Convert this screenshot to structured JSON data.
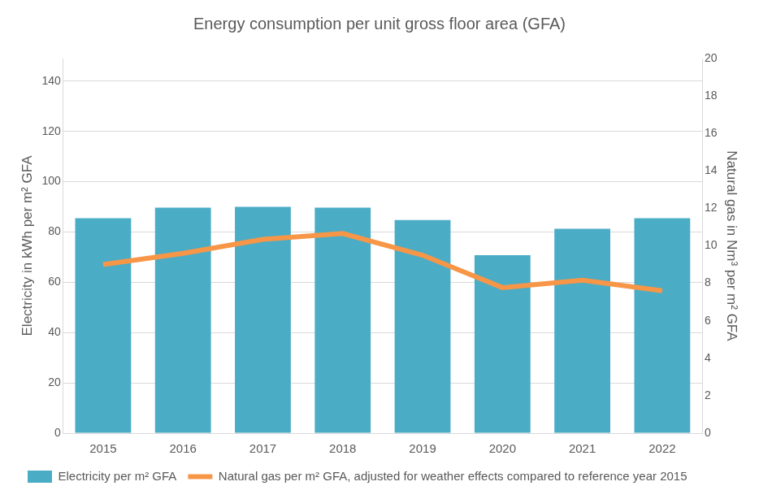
{
  "chart_data": {
    "type": "bar",
    "title": "Energy consumption per unit gross floor area (GFA)",
    "categories": [
      "2015",
      "2016",
      "2017",
      "2018",
      "2019",
      "2020",
      "2021",
      "2022"
    ],
    "series": [
      {
        "name": "Electricity per m² GFA",
        "type": "bar",
        "color": "#4bacc6",
        "values": [
          85.5,
          89.7,
          90.0,
          89.7,
          84.8,
          70.8,
          81.3,
          85.5
        ]
      },
      {
        "name": "Natural gas per m² GFA, adjusted for weather effects compared to reference year 2015",
        "type": "line",
        "color": "#f79646",
        "axis": "y2",
        "values": [
          9.0,
          9.6,
          10.35,
          10.66,
          9.5,
          7.77,
          8.17,
          7.6
        ]
      }
    ],
    "ylabel": "Electricity in kWh per m² GFA",
    "y2label": "Natural gas in Nm³ per m² GFA",
    "ylim": [
      0,
      149
    ],
    "yticks": [
      0,
      20,
      40,
      60,
      80,
      100,
      120,
      140
    ],
    "y2lim": [
      0,
      20
    ],
    "y2ticks": [
      0,
      2,
      4,
      6,
      8,
      10,
      12,
      14,
      16,
      18,
      20
    ],
    "grid": true,
    "legend": "bottom"
  }
}
